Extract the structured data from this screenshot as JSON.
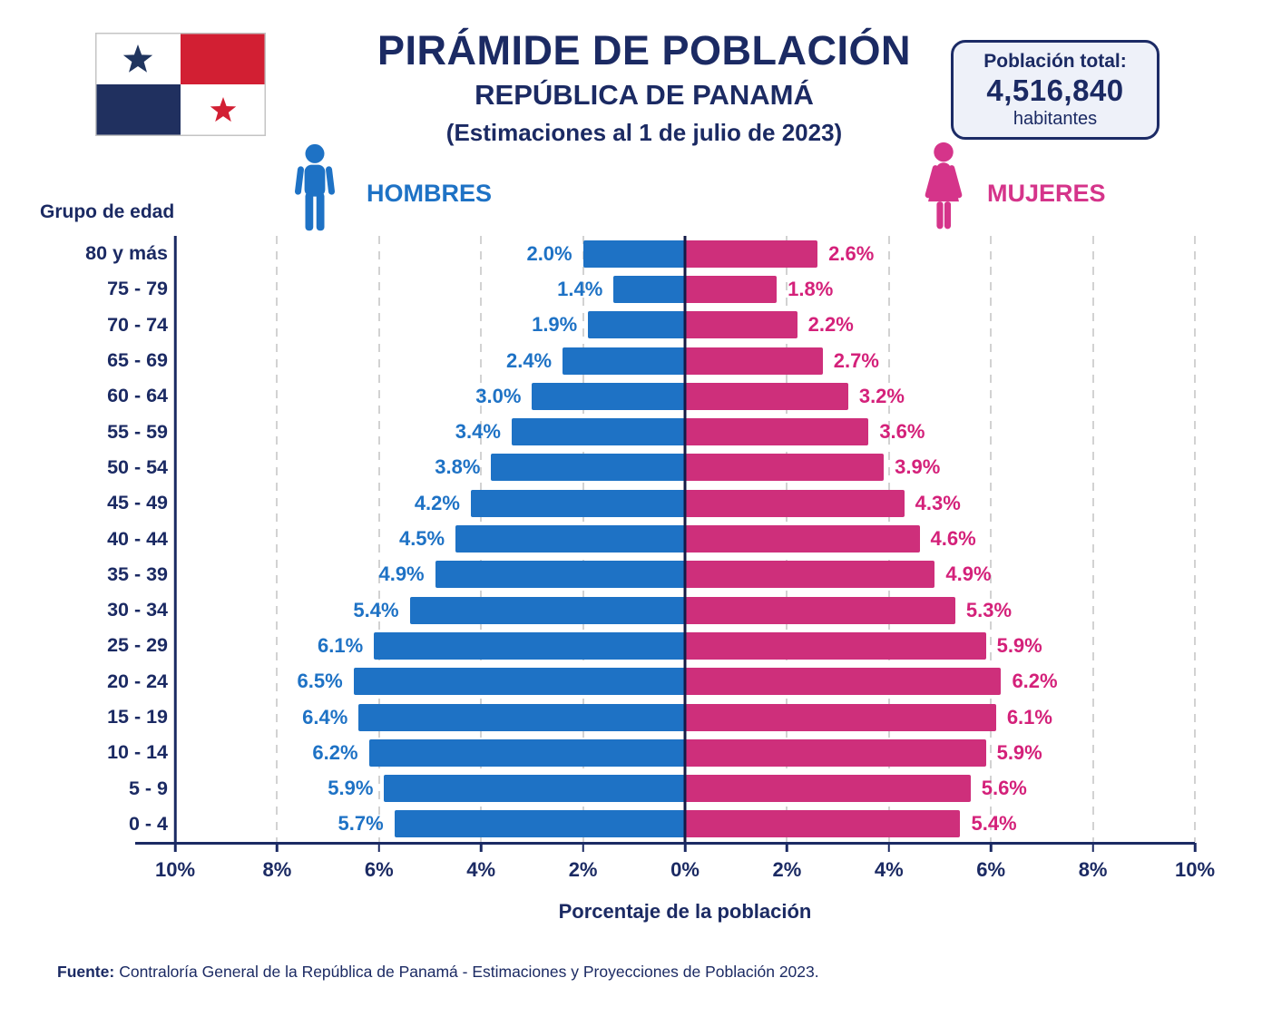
{
  "header": {
    "title": "PIRÁMIDE DE POBLACIÓN",
    "subtitle": "REPÚBLICA DE PANAMÁ",
    "estimation_note": "(Estimaciones al 1 de julio de 2023)",
    "population_box": {
      "label": "Población total:",
      "value": "4,516,840",
      "unit": "habitantes"
    }
  },
  "legend": {
    "male_label": "HOMBRES",
    "female_label": "MUJERES"
  },
  "colors": {
    "male_bar": "#1E72C5",
    "female_bar": "#CE2F7B",
    "male_label": "#1E72C5",
    "female_label": "#D4217A",
    "navy_text": "#1B2A63",
    "gridline": "#D2D2D2",
    "population_box_bg": "#EEF1F9",
    "flag_red": "#D21F33",
    "flag_navy": "#20305F"
  },
  "chart_data": {
    "type": "bar",
    "variant": "population-pyramid",
    "group_axis_label": "Grupo de edad",
    "xlabel": "Porcentaje de la población",
    "x_ticks": [
      "10%",
      "8%",
      "6%",
      "4%",
      "2%",
      "0%",
      "2%",
      "4%",
      "6%",
      "8%",
      "10%"
    ],
    "xlim_percent": [
      -10,
      10
    ],
    "grid": "vertical-dashed",
    "legend_position": "top",
    "categories": [
      "80 y más",
      "75 - 79",
      "70 - 74",
      "65 - 69",
      "60 - 64",
      "55 - 59",
      "50 - 54",
      "45 - 49",
      "40 - 44",
      "35 - 39",
      "30 - 34",
      "25 - 29",
      "20 - 24",
      "15 - 19",
      "10 - 14",
      "5 - 9",
      "0 - 4"
    ],
    "series": [
      {
        "name": "HOMBRES",
        "side": "left",
        "values": [
          2.0,
          1.4,
          1.9,
          2.4,
          3.0,
          3.4,
          3.8,
          4.2,
          4.5,
          4.9,
          5.4,
          6.1,
          6.5,
          6.4,
          6.2,
          5.9,
          5.7
        ],
        "labels": [
          "2.0%",
          "1.4%",
          "1.9%",
          "2.4%",
          "3.0%",
          "3.4%",
          "3.8%",
          "4.2%",
          "4.5%",
          "4.9%",
          "5.4%",
          "6.1%",
          "6.5%",
          "6.4%",
          "6.2%",
          "5.9%",
          "5.7%"
        ]
      },
      {
        "name": "MUJERES",
        "side": "right",
        "values": [
          2.6,
          1.8,
          2.2,
          2.7,
          3.2,
          3.6,
          3.9,
          4.3,
          4.6,
          4.9,
          5.3,
          5.9,
          6.2,
          6.1,
          5.9,
          5.6,
          5.4
        ],
        "labels": [
          "2.6%",
          "1.8%",
          "2.2%",
          "2.7%",
          "3.2%",
          "3.6%",
          "3.9%",
          "4.3%",
          "4.6%",
          "4.9%",
          "5.3%",
          "5.9%",
          "6.2%",
          "6.1%",
          "5.9%",
          "5.6%",
          "5.4%"
        ]
      }
    ]
  },
  "footer": {
    "source_label": "Fuente:",
    "source_text": "Contraloría General de la República de Panamá - Estimaciones y Proyecciones de Población 2023."
  }
}
